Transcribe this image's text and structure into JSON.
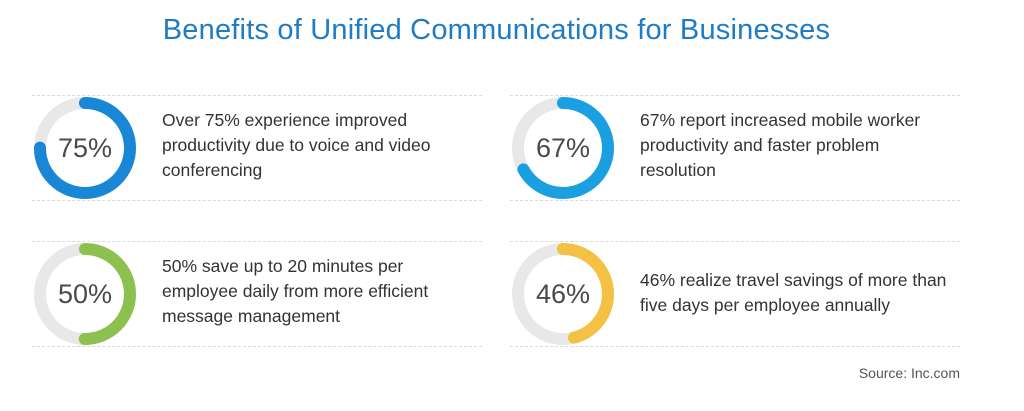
{
  "title": "Benefits of Unified Communications for Businesses",
  "colors": {
    "title": "#1f7cc4",
    "track": "#e8e8e8"
  },
  "stats": [
    {
      "value_label": "75%",
      "fraction": 0.75,
      "color": "#1a86d6",
      "description": "Over 75% experience improved productivity due to voice and video conferencing"
    },
    {
      "value_label": "67%",
      "fraction": 0.67,
      "color": "#1aa0e0",
      "description": "67% report increased mobile worker productivity and faster problem resolution"
    },
    {
      "value_label": "50%",
      "fraction": 0.5,
      "color": "#8cc04f",
      "description": "50% save up to 20 minutes per employee daily from more efficient message management"
    },
    {
      "value_label": "46%",
      "fraction": 0.46,
      "color": "#f4c144",
      "description": "46% realize travel savings of more than five days per employee annually"
    }
  ],
  "source": "Source: Inc.com"
}
